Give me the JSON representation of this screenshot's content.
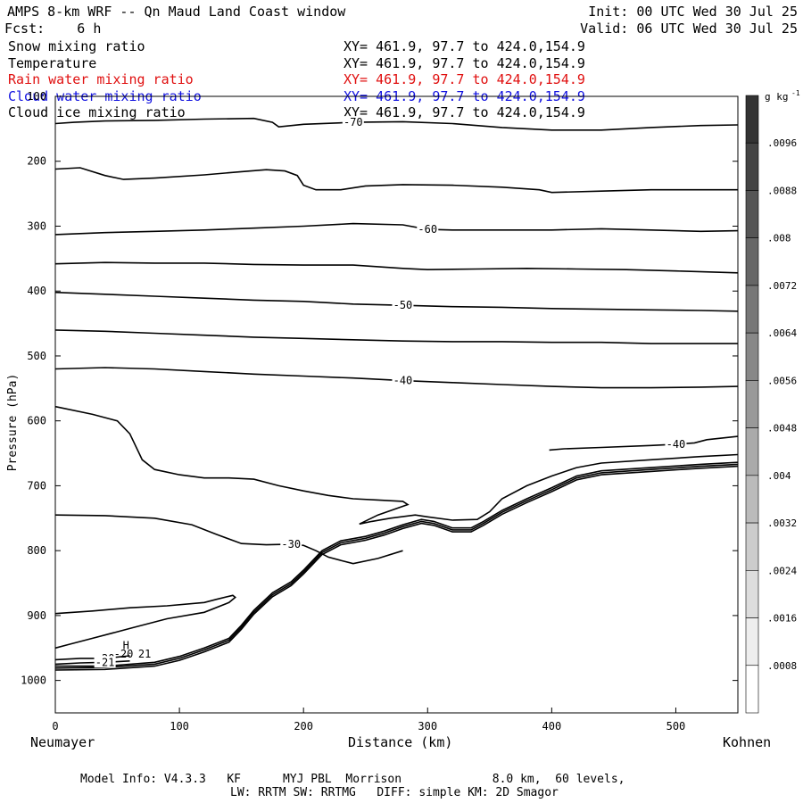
{
  "header": {
    "title": "AMPS 8-km WRF -- Qn Maud Land Coast window",
    "init": "Init: 00 UTC Wed 30 Jul 25",
    "fcst": "Fcst:    6 h",
    "valid": "Valid: 06 UTC Wed 30 Jul 25"
  },
  "fields": [
    {
      "name": "Snow mixing ratio",
      "xy": "XY= 461.9, 97.7 to 424.0,154.9",
      "color": "#000000"
    },
    {
      "name": "Temperature",
      "xy": "XY= 461.9, 97.7 to 424.0,154.9",
      "color": "#000000"
    },
    {
      "name": "Rain water mixing ratio",
      "xy": "XY= 461.9, 97.7 to 424.0,154.9",
      "color": "#e01010"
    },
    {
      "name": "Cloud water mixing ratio",
      "xy": "XY= 461.9, 97.7 to 424.0,154.9",
      "color": "#1010e0"
    },
    {
      "name": "Cloud ice mixing ratio",
      "xy": "XY= 461.9, 97.7 to 424.0,154.9",
      "color": "#000000"
    }
  ],
  "footer": {
    "line1": "Model Info: V4.3.3   KF      MYJ PBL  Morrison             8.0 km,  60 levels,",
    "line2": "LW: RRTM SW: RRTMG   DIFF: simple KM: 2D Smagor"
  },
  "chart_data": {
    "type": "line",
    "subtype": "vertical cross-section contour",
    "xlabel": "Distance (km)",
    "ylabel": "Pressure (hPa)",
    "xlim": [
      0,
      550
    ],
    "ylim": [
      1050,
      100
    ],
    "x_ticks": [
      0,
      100,
      200,
      300,
      400,
      500
    ],
    "y_ticks": [
      100,
      200,
      300,
      400,
      500,
      600,
      700,
      800,
      900,
      1000
    ],
    "left_endpoint": "Neumayer",
    "right_endpoint": "Kohnen",
    "colorbar": {
      "unit": "g kg",
      "unit_exp": "-1",
      "labels": [
        ".0096",
        ".0088",
        ".008",
        ".0072",
        ".0064",
        ".0056",
        ".0048",
        ".004",
        ".0032",
        ".0024",
        ".0016",
        ".0008"
      ],
      "shades": [
        "#333333",
        "#444444",
        "#555555",
        "#666666",
        "#777777",
        "#888888",
        "#999999",
        "#aaaaaa",
        "#bbbbbb",
        "#cccccc",
        "#dddddd",
        "#eeeeee",
        "#ffffff"
      ]
    },
    "isotherms": [
      {
        "label": "-70",
        "points": [
          [
            0,
            142
          ],
          [
            15,
            140
          ],
          [
            40,
            138
          ],
          [
            80,
            137
          ],
          [
            120,
            135
          ],
          [
            160,
            134
          ],
          [
            175,
            140
          ],
          [
            180,
            147
          ],
          [
            200,
            143
          ],
          [
            240,
            140
          ],
          [
            280,
            139
          ],
          [
            320,
            142
          ],
          [
            360,
            148
          ],
          [
            400,
            152
          ],
          [
            440,
            152
          ],
          [
            480,
            148
          ],
          [
            520,
            145
          ],
          [
            550,
            144
          ]
        ]
      },
      {
        "label": "",
        "points": [
          [
            0,
            212
          ],
          [
            20,
            210
          ],
          [
            40,
            222
          ],
          [
            55,
            228
          ],
          [
            80,
            226
          ],
          [
            120,
            221
          ],
          [
            150,
            216
          ],
          [
            170,
            213
          ],
          [
            185,
            215
          ],
          [
            195,
            222
          ],
          [
            200,
            237
          ],
          [
            210,
            244
          ],
          [
            230,
            244
          ],
          [
            250,
            238
          ],
          [
            280,
            236
          ],
          [
            320,
            237
          ],
          [
            360,
            240
          ],
          [
            390,
            244
          ],
          [
            400,
            248
          ],
          [
            440,
            246
          ],
          [
            480,
            244
          ],
          [
            520,
            244
          ],
          [
            550,
            244
          ]
        ]
      },
      {
        "label": "-60",
        "points": [
          [
            0,
            313
          ],
          [
            40,
            310
          ],
          [
            80,
            308
          ],
          [
            120,
            306
          ],
          [
            160,
            303
          ],
          [
            200,
            300
          ],
          [
            240,
            296
          ],
          [
            280,
            298
          ],
          [
            300,
            305
          ],
          [
            320,
            306
          ],
          [
            360,
            306
          ],
          [
            400,
            306
          ],
          [
            440,
            304
          ],
          [
            480,
            306
          ],
          [
            520,
            308
          ],
          [
            550,
            307
          ]
        ]
      },
      {
        "label": "",
        "points": [
          [
            0,
            358
          ],
          [
            40,
            356
          ],
          [
            80,
            357
          ],
          [
            120,
            357
          ],
          [
            160,
            359
          ],
          [
            200,
            360
          ],
          [
            240,
            360
          ],
          [
            280,
            365
          ],
          [
            300,
            367
          ],
          [
            340,
            366
          ],
          [
            380,
            365
          ],
          [
            420,
            366
          ],
          [
            460,
            367
          ],
          [
            500,
            369
          ],
          [
            550,
            372
          ]
        ]
      },
      {
        "label": "-50",
        "points": [
          [
            0,
            402
          ],
          [
            40,
            405
          ],
          [
            80,
            408
          ],
          [
            120,
            411
          ],
          [
            160,
            414
          ],
          [
            200,
            416
          ],
          [
            240,
            420
          ],
          [
            280,
            422
          ],
          [
            320,
            424
          ],
          [
            360,
            425
          ],
          [
            400,
            427
          ],
          [
            440,
            428
          ],
          [
            480,
            429
          ],
          [
            520,
            430
          ],
          [
            550,
            431
          ]
        ]
      },
      {
        "label": "",
        "points": [
          [
            0,
            460
          ],
          [
            40,
            462
          ],
          [
            80,
            465
          ],
          [
            120,
            468
          ],
          [
            160,
            471
          ],
          [
            200,
            473
          ],
          [
            240,
            475
          ],
          [
            280,
            477
          ],
          [
            320,
            478
          ],
          [
            360,
            478
          ],
          [
            400,
            479
          ],
          [
            440,
            479
          ],
          [
            480,
            481
          ],
          [
            550,
            481
          ]
        ]
      },
      {
        "label": "-40",
        "points": [
          [
            0,
            520
          ],
          [
            40,
            518
          ],
          [
            80,
            520
          ],
          [
            120,
            524
          ],
          [
            160,
            528
          ],
          [
            200,
            531
          ],
          [
            240,
            534
          ],
          [
            280,
            538
          ],
          [
            320,
            541
          ],
          [
            360,
            544
          ],
          [
            400,
            547
          ],
          [
            440,
            549
          ],
          [
            480,
            549
          ],
          [
            520,
            548
          ],
          [
            550,
            547
          ]
        ]
      },
      {
        "label": "",
        "points": [
          [
            0,
            578
          ],
          [
            30,
            590
          ],
          [
            50,
            600
          ],
          [
            60,
            620
          ],
          [
            70,
            660
          ],
          [
            80,
            675
          ],
          [
            100,
            683
          ],
          [
            120,
            688
          ],
          [
            140,
            688
          ],
          [
            160,
            690
          ],
          [
            180,
            700
          ],
          [
            200,
            708
          ],
          [
            220,
            715
          ],
          [
            240,
            720
          ],
          [
            260,
            722
          ],
          [
            280,
            724
          ],
          [
            284,
            729
          ],
          [
            260,
            745
          ],
          [
            245,
            759
          ],
          [
            255,
            755
          ],
          [
            270,
            750
          ],
          [
            290,
            745
          ],
          [
            300,
            748
          ],
          [
            320,
            753
          ],
          [
            340,
            752
          ],
          [
            350,
            740
          ],
          [
            360,
            720
          ],
          [
            380,
            700
          ],
          [
            400,
            685
          ],
          [
            420,
            672
          ],
          [
            440,
            665
          ],
          [
            480,
            660
          ],
          [
            520,
            655
          ],
          [
            550,
            652
          ]
        ]
      },
      {
        "label": "-30",
        "points": [
          [
            0,
            745
          ],
          [
            40,
            746
          ],
          [
            80,
            750
          ],
          [
            110,
            760
          ],
          [
            130,
            775
          ],
          [
            150,
            789
          ],
          [
            170,
            791
          ],
          [
            190,
            790
          ],
          [
            200,
            792
          ],
          [
            210,
            800
          ],
          [
            220,
            810
          ],
          [
            230,
            815
          ],
          [
            240,
            820
          ],
          [
            260,
            812
          ],
          [
            280,
            800
          ]
        ]
      },
      {
        "label": "",
        "points": [
          [
            0,
            897
          ],
          [
            30,
            893
          ],
          [
            60,
            888
          ],
          [
            90,
            885
          ],
          [
            120,
            880
          ],
          [
            130,
            875
          ],
          [
            143,
            869
          ],
          [
            145,
            872
          ],
          [
            140,
            880
          ],
          [
            120,
            895
          ],
          [
            90,
            905
          ],
          [
            60,
            920
          ],
          [
            30,
            935
          ],
          [
            10,
            945
          ],
          [
            0,
            950
          ]
        ]
      },
      {
        "label": "-20",
        "points": [
          [
            0,
            968
          ],
          [
            20,
            966
          ],
          [
            40,
            966
          ],
          [
            60,
            962
          ]
        ]
      },
      {
        "label": "-21",
        "points": [
          [
            0,
            975
          ],
          [
            20,
            973
          ],
          [
            40,
            972
          ],
          [
            60,
            970
          ]
        ]
      },
      {
        "label": "-40",
        "points": [
          [
            398,
            645
          ],
          [
            410,
            643
          ],
          [
            440,
            641
          ],
          [
            480,
            638
          ],
          [
            500,
            636
          ],
          [
            515,
            634
          ],
          [
            525,
            629
          ],
          [
            535,
            627
          ],
          [
            550,
            624
          ]
        ]
      }
    ],
    "terrain_lines": [
      {
        "points": [
          [
            0,
            978
          ],
          [
            40,
            978
          ],
          [
            80,
            972
          ],
          [
            100,
            963
          ],
          [
            120,
            950
          ],
          [
            140,
            935
          ],
          [
            150,
            915
          ],
          [
            160,
            892
          ],
          [
            175,
            865
          ],
          [
            190,
            848
          ],
          [
            200,
            830
          ],
          [
            215,
            800
          ],
          [
            230,
            785
          ],
          [
            250,
            778
          ],
          [
            265,
            770
          ],
          [
            280,
            760
          ],
          [
            295,
            752
          ],
          [
            305,
            755
          ],
          [
            320,
            765
          ],
          [
            335,
            765
          ],
          [
            345,
            755
          ],
          [
            360,
            738
          ],
          [
            380,
            720
          ],
          [
            400,
            703
          ],
          [
            420,
            685
          ],
          [
            440,
            677
          ],
          [
            480,
            672
          ],
          [
            520,
            667
          ],
          [
            550,
            664
          ]
        ]
      },
      {
        "points": [
          [
            0,
            981
          ],
          [
            40,
            980
          ],
          [
            80,
            975
          ],
          [
            100,
            966
          ],
          [
            120,
            953
          ],
          [
            140,
            938
          ],
          [
            150,
            918
          ],
          [
            160,
            895
          ],
          [
            175,
            868
          ],
          [
            190,
            851
          ],
          [
            200,
            833
          ],
          [
            215,
            803
          ],
          [
            230,
            788
          ],
          [
            250,
            781
          ],
          [
            265,
            773
          ],
          [
            280,
            763
          ],
          [
            295,
            755
          ],
          [
            305,
            758
          ],
          [
            320,
            768
          ],
          [
            335,
            768
          ],
          [
            345,
            758
          ],
          [
            360,
            741
          ],
          [
            380,
            723
          ],
          [
            400,
            706
          ],
          [
            420,
            688
          ],
          [
            440,
            680
          ],
          [
            480,
            675
          ],
          [
            520,
            670
          ],
          [
            550,
            667
          ]
        ]
      },
      {
        "points": [
          [
            0,
            984
          ],
          [
            40,
            983
          ],
          [
            80,
            978
          ],
          [
            100,
            969
          ],
          [
            120,
            956
          ],
          [
            140,
            941
          ],
          [
            150,
            921
          ],
          [
            160,
            898
          ],
          [
            175,
            871
          ],
          [
            190,
            854
          ],
          [
            200,
            836
          ],
          [
            215,
            806
          ],
          [
            230,
            791
          ],
          [
            250,
            784
          ],
          [
            265,
            776
          ],
          [
            280,
            766
          ],
          [
            295,
            758
          ],
          [
            305,
            761
          ],
          [
            320,
            771
          ],
          [
            335,
            771
          ],
          [
            345,
            761
          ],
          [
            360,
            744
          ],
          [
            380,
            726
          ],
          [
            400,
            709
          ],
          [
            420,
            691
          ],
          [
            440,
            683
          ],
          [
            480,
            678
          ],
          [
            520,
            673
          ],
          [
            550,
            670
          ]
        ]
      }
    ],
    "annotations": [
      {
        "text": "H",
        "x": 57,
        "y": 952
      },
      {
        "text": "-20",
        "x": 55,
        "y": 965
      },
      {
        "text": "21",
        "x": 72,
        "y": 965
      }
    ]
  }
}
